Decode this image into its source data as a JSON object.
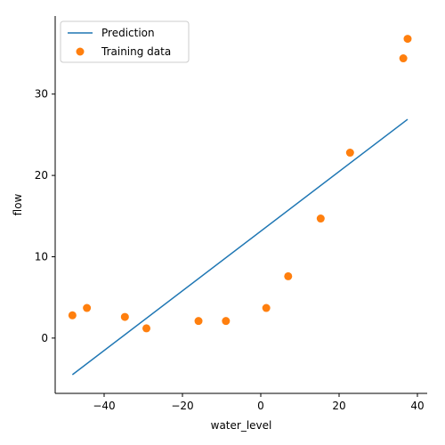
{
  "chart_data": {
    "type": "scatter",
    "xlabel": "water_level",
    "ylabel": "flow",
    "xlim": [
      -52.5,
      42.5
    ],
    "ylim": [
      -6.8,
      39.6
    ],
    "xticks": [
      -40,
      -20,
      0,
      20,
      40
    ],
    "yticks": [
      0,
      10,
      20,
      30
    ],
    "grid": false,
    "legend": "top-left",
    "series": [
      {
        "name": "Prediction",
        "kind": "line",
        "color": "#1f77b4",
        "x": [
          -48.1,
          37.5
        ],
        "y": [
          -4.5,
          26.9
        ]
      },
      {
        "name": "Training data",
        "kind": "scatter",
        "color": "#ff7f0e",
        "x": [
          -48.1,
          -44.4,
          -34.7,
          -29.2,
          -15.9,
          -8.9,
          1.4,
          7.0,
          15.3,
          22.8,
          36.4,
          37.5
        ],
        "y": [
          2.8,
          3.7,
          2.6,
          1.2,
          2.1,
          2.1,
          3.7,
          7.6,
          14.7,
          22.8,
          34.4,
          36.8
        ]
      }
    ]
  }
}
